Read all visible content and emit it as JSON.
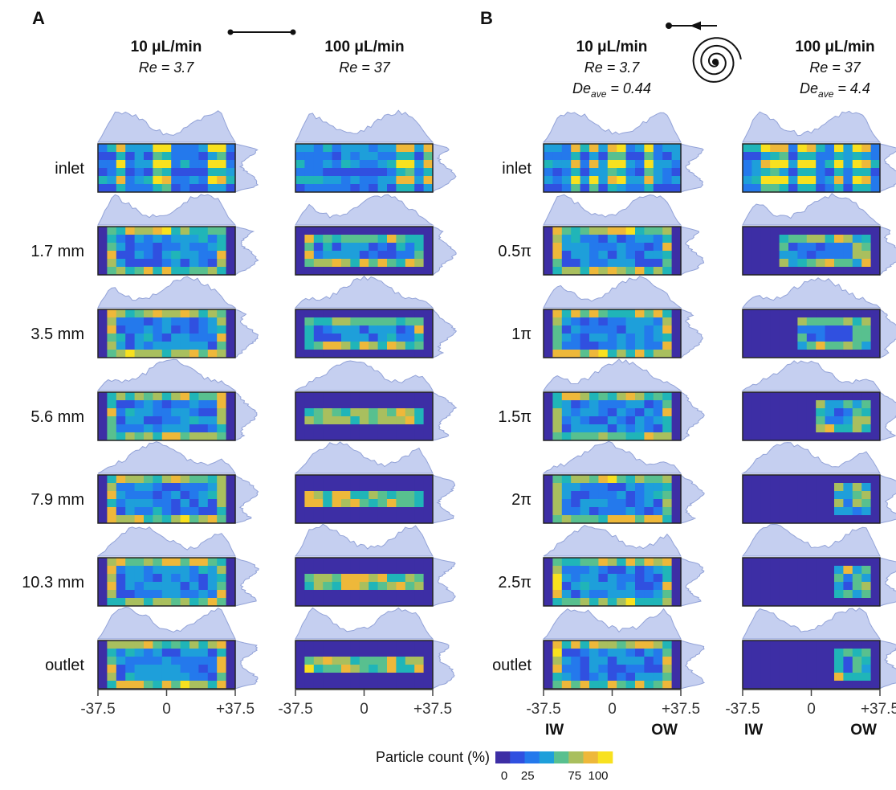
{
  "panels": [
    {
      "label": "A",
      "columns": [
        {
          "flow": "10 μL/min",
          "re": "Re = 3.7"
        },
        {
          "flow": "100 μL/min",
          "re": "Re = 37"
        }
      ],
      "rows": [
        "inlet",
        "1.7 mm",
        "3.5 mm",
        "5.6 mm",
        "7.9 mm",
        "10.3 mm",
        "outlet"
      ],
      "x_ticks": [
        "-37.5",
        "0",
        "+37.5"
      ]
    },
    {
      "label": "B",
      "columns": [
        {
          "flow": "10 μL/min",
          "re": "Re = 3.7",
          "de": "De",
          "de_sub": "ave",
          "de_value": " = 0.44"
        },
        {
          "flow": "100 μL/min",
          "re": "Re = 37",
          "de": "De",
          "de_sub": "ave",
          "de_value": " = 4.4"
        }
      ],
      "rows": [
        "inlet",
        "0.5π",
        "1π",
        "1.5π",
        "2π",
        "2.5π",
        "outlet"
      ],
      "x_ticks": [
        "-37.5",
        "0",
        "+37.5"
      ],
      "wall_labels": [
        "IW",
        "OW"
      ]
    }
  ],
  "colorbar": {
    "title": "Particle count (%)",
    "ticks": [
      0,
      25,
      75,
      100
    ],
    "range": [
      0,
      100
    ]
  }
}
